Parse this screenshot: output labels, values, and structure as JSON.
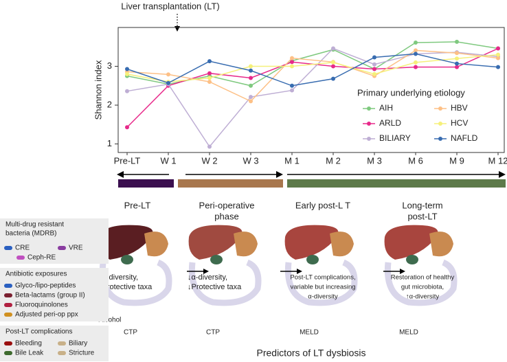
{
  "chart_data": {
    "type": "line",
    "annotation": "Liver transplantation (LT)",
    "y_label": "Shannon index",
    "categories": [
      "Pre-LT",
      "W 1",
      "W 2",
      "W 3",
      "M 1",
      "M 2",
      "M 3",
      "M 6",
      "M 9",
      "M 12"
    ],
    "ylim": [
      0.78,
      4.0
    ],
    "yticks": [
      1,
      2,
      3
    ],
    "grid": false,
    "legend_title": "Primary underlying etiology",
    "series": [
      {
        "name": "AIH",
        "color": "#7fc97f",
        "values": [
          2.75,
          2.54,
          2.75,
          2.5,
          3.14,
          3.43,
          2.93,
          3.61,
          3.63,
          3.46
        ]
      },
      {
        "name": "ARLD",
        "color": "#e7298a",
        "values": [
          1.43,
          2.5,
          2.82,
          2.7,
          3.11,
          3.0,
          2.93,
          2.98,
          2.98,
          3.46
        ]
      },
      {
        "name": "BILIARY",
        "color": "#beaed4",
        "values": [
          2.36,
          2.54,
          0.93,
          2.21,
          2.38,
          3.46,
          3.05,
          3.32,
          3.36,
          3.25
        ]
      },
      {
        "name": "HBV",
        "color": "#fdc086",
        "values": [
          2.86,
          2.79,
          2.6,
          2.1,
          3.21,
          3.11,
          2.75,
          3.41,
          3.34,
          3.21
        ]
      },
      {
        "name": "HCV",
        "color": "#f5f07a",
        "values": [
          2.8,
          2.6,
          2.7,
          3.0,
          3.0,
          3.1,
          2.8,
          3.1,
          3.2,
          3.3
        ]
      },
      {
        "name": "NAFLD",
        "color": "#386cb0",
        "values": [
          2.93,
          2.57,
          3.13,
          2.89,
          2.5,
          2.68,
          3.23,
          3.32,
          3.07,
          2.98
        ]
      }
    ]
  },
  "diagram": {
    "phases": [
      {
        "title": [
          "Pre-LT"
        ],
        "text": [
          "↓α-diversity,",
          "↓Protective taxa"
        ],
        "labels": [
          "Alcohol",
          "CTP"
        ]
      },
      {
        "title": [
          "Peri-operative",
          "phase"
        ],
        "text": [
          "↓α-diversity,",
          "↓Protective taxa"
        ],
        "labels": [
          "CTP"
        ]
      },
      {
        "title": [
          "Early post-L T"
        ],
        "text": [
          "Post-LT complications,",
          "variable but increasing",
          "α-diversity"
        ],
        "labels": [
          "MELD"
        ]
      },
      {
        "title": [
          "Long-term",
          "post-LT"
        ],
        "text": [
          "Restoration of healthy",
          "gut microbiota,",
          "↑α-diversity"
        ],
        "labels": [
          "MELD"
        ]
      }
    ],
    "footer": "Predictors of LT dysbiosis",
    "key": [
      {
        "title": [
          "Multi-drug resistant",
          "bacteria (MDRB)"
        ],
        "items": [
          "CRE",
          "VRE",
          "Ceph-RE"
        ]
      },
      {
        "title": [
          "Antibiotic exposures"
        ],
        "items": [
          "Glyco-/lipo-peptides",
          "Beta-lactams (group II)",
          "Fluoroquinolones",
          "Adjusted peri-op ppx"
        ]
      },
      {
        "title": [
          "Post-LT complications"
        ],
        "items": [
          "Bleeding",
          "Biliary",
          "Bile Leak",
          "Stricture"
        ]
      }
    ]
  }
}
